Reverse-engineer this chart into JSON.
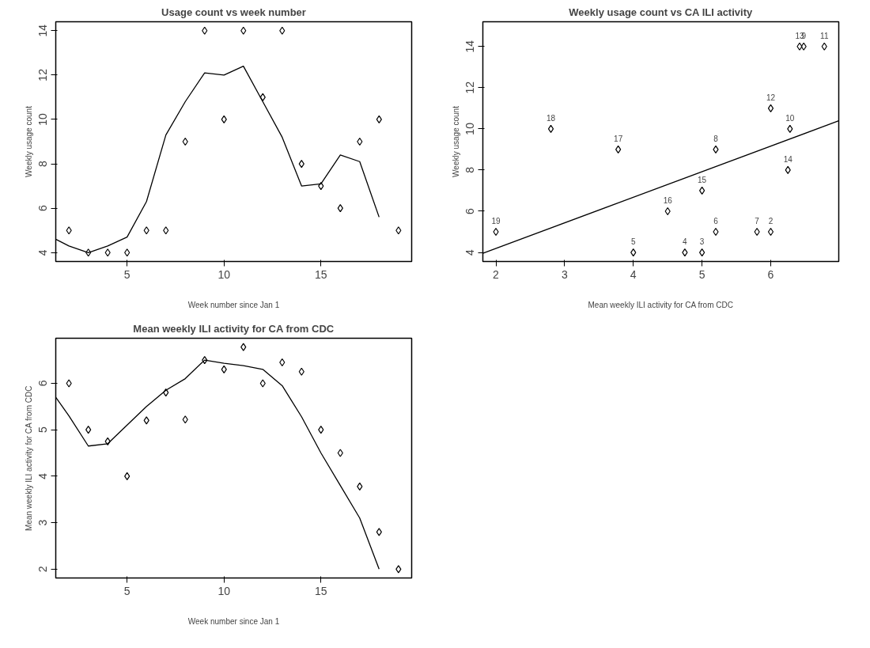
{
  "chart_data": [
    {
      "type": "scatter",
      "title": "Usage count vs week number",
      "xlabel": "Week number since Jan 1",
      "ylabel": "Weekly usage count",
      "xlim": [
        1.32,
        19.68
      ],
      "ylim": [
        3.6,
        14.4
      ],
      "xticks": [
        5,
        10,
        15
      ],
      "yticks": [
        4,
        6,
        8,
        10,
        12,
        14
      ],
      "grid": false,
      "marker": "diamond",
      "series": [
        {
          "color": "#000000",
          "x": [
            2,
            3,
            4,
            5,
            6,
            7,
            8,
            9,
            10,
            11,
            12,
            13,
            14,
            15,
            16,
            17,
            18,
            19
          ],
          "values": [
            5,
            4,
            4,
            4,
            5,
            5,
            9,
            14,
            10,
            14,
            11,
            14,
            8,
            7,
            6,
            9,
            10,
            5
          ]
        },
        {
          "type": "line",
          "marker": "none",
          "color": "#000000",
          "x": [
            1.32,
            2,
            3,
            4,
            5,
            6,
            7,
            8,
            9,
            10,
            11,
            12,
            13,
            14,
            15,
            16,
            17,
            18
          ],
          "values": [
            4.6,
            4.3,
            4.0,
            4.3,
            4.7,
            6.3,
            9.3,
            10.8,
            12.1,
            12.0,
            12.4,
            10.8,
            9.2,
            7.0,
            7.1,
            8.4,
            8.1,
            5.6
          ]
        }
      ]
    },
    {
      "type": "scatter",
      "title": "Weekly usage count vs CA ILI activity",
      "xlabel": "Mean weekly ILI activity for CA from CDC",
      "ylabel": "Weekly usage count",
      "xlim": [
        1.81,
        6.99
      ],
      "ylim": [
        3.56,
        15.2
      ],
      "xticks": [
        2,
        3,
        4,
        5,
        6
      ],
      "yticks": [
        4,
        6,
        8,
        10,
        12,
        14
      ],
      "grid": false,
      "marker": "diamond",
      "series": [
        {
          "color": "#000000",
          "x": [
            6.0,
            5.0,
            4.75,
            4.0,
            5.2,
            5.8,
            5.2,
            6.48,
            6.28,
            6.78,
            6.0,
            6.42,
            6.25,
            5.0,
            4.5,
            3.78,
            2.8,
            2.0
          ],
          "values": [
            5,
            4,
            4,
            4,
            5,
            5,
            9,
            14,
            10,
            14,
            11,
            14,
            8,
            7,
            6,
            9,
            10,
            5
          ]
        },
        {
          "type": "line",
          "marker": "none",
          "color": "#000000",
          "x": [
            1.81,
            6.99
          ],
          "values": [
            3.96,
            10.39
          ]
        }
      ],
      "annotations": [
        {
          "text": "2",
          "x": 6.0,
          "y": 5
        },
        {
          "text": "3",
          "x": 5.0,
          "y": 4
        },
        {
          "text": "4",
          "x": 4.75,
          "y": 4
        },
        {
          "text": "5",
          "x": 4.0,
          "y": 4
        },
        {
          "text": "6",
          "x": 5.2,
          "y": 5
        },
        {
          "text": "7",
          "x": 5.8,
          "y": 5
        },
        {
          "text": "8",
          "x": 5.2,
          "y": 9
        },
        {
          "text": "9",
          "x": 6.48,
          "y": 14
        },
        {
          "text": "10",
          "x": 6.28,
          "y": 10
        },
        {
          "text": "11",
          "x": 6.78,
          "y": 14
        },
        {
          "text": "12",
          "x": 6.0,
          "y": 11
        },
        {
          "text": "13",
          "x": 6.42,
          "y": 14
        },
        {
          "text": "14",
          "x": 6.25,
          "y": 8
        },
        {
          "text": "15",
          "x": 5.0,
          "y": 7
        },
        {
          "text": "16",
          "x": 4.5,
          "y": 6
        },
        {
          "text": "17",
          "x": 3.78,
          "y": 9
        },
        {
          "text": "18",
          "x": 2.8,
          "y": 10
        },
        {
          "text": "19",
          "x": 2.0,
          "y": 5
        }
      ]
    },
    {
      "type": "scatter",
      "title": "Mean weekly ILI activity for CA from CDC",
      "xlabel": "Week number since Jan 1",
      "ylabel": "Mean weekly ILI activity for CA from CDC",
      "xlim": [
        1.32,
        19.68
      ],
      "ylim": [
        1.81,
        6.97
      ],
      "xticks": [
        5,
        10,
        15
      ],
      "yticks": [
        2,
        3,
        4,
        5,
        6
      ],
      "grid": false,
      "marker": "diamond",
      "series": [
        {
          "color": "#000000",
          "x": [
            2,
            3,
            4,
            5,
            6,
            7,
            8,
            9,
            10,
            11,
            12,
            13,
            14,
            15,
            16,
            17,
            18,
            19
          ],
          "values": [
            6.0,
            5.0,
            4.75,
            4.0,
            5.2,
            5.8,
            5.22,
            6.5,
            6.3,
            6.78,
            6.0,
            6.45,
            6.25,
            5.0,
            4.5,
            3.78,
            2.8,
            2.0
          ]
        },
        {
          "type": "line",
          "marker": "none",
          "color": "#000000",
          "x": [
            1.32,
            2,
            3,
            4,
            5,
            6,
            7,
            8,
            9,
            10,
            11,
            12,
            13,
            14,
            15,
            16,
            17,
            18
          ],
          "values": [
            5.7,
            5.3,
            4.65,
            4.7,
            5.1,
            5.5,
            5.85,
            6.1,
            6.5,
            6.43,
            6.38,
            6.3,
            5.95,
            5.28,
            4.5,
            3.8,
            3.1,
            2.0
          ]
        }
      ]
    }
  ]
}
